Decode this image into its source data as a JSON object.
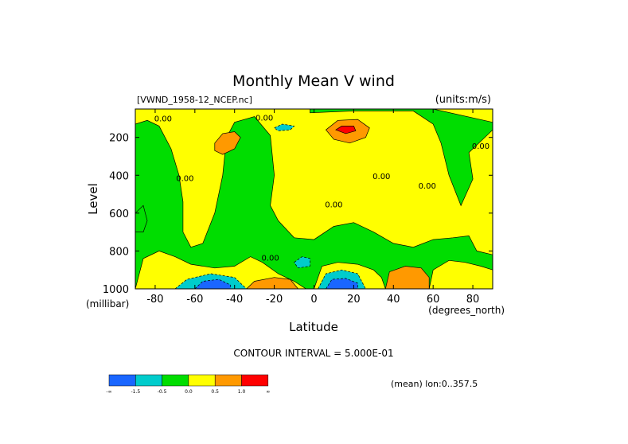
{
  "chart_data": {
    "type": "contour",
    "title": "Monthly Mean V wind",
    "dataset_label": "[VWND_1958-12_NCEP.nc]",
    "units_label": "(units:m/s)",
    "xlabel": "Latitude",
    "x_units": "(degrees_north)",
    "ylabel": "Level",
    "y_units": "(millibar)",
    "xlim": [
      -90,
      90
    ],
    "ylim": [
      1000,
      50
    ],
    "x_ticks": [
      -80,
      -60,
      -40,
      -20,
      0,
      20,
      40,
      60,
      80
    ],
    "y_ticks": [
      200,
      400,
      600,
      800,
      1000
    ],
    "contour_interval_text": "CONTOUR INTERVAL = 5.000E-01",
    "mean_text": "(mean) lon:0..357.5",
    "contour_labels": [
      {
        "text": "0.00",
        "lat": -76,
        "lev": 115
      },
      {
        "text": "0.00",
        "lat": -25,
        "lev": 110
      },
      {
        "text": "0.00",
        "lat": -65,
        "lev": 430
      },
      {
        "text": "0.00",
        "lat": 10,
        "lev": 570
      },
      {
        "text": "0.00",
        "lat": 34,
        "lev": 420
      },
      {
        "text": "0.00",
        "lat": 57,
        "lev": 470
      },
      {
        "text": "0.00",
        "lat": 84,
        "lev": 260
      },
      {
        "text": "0.00",
        "lat": -22,
        "lev": 850
      }
    ],
    "colorbar": {
      "colors": [
        "#1a66ff",
        "#00cccc",
        "#00dd00",
        "#ffff00",
        "#ff9900",
        "#ff0000"
      ],
      "labels": [
        "-∞",
        "-1.5",
        "-0.5",
        "0.0",
        "0.5",
        "1.0",
        "∞"
      ]
    },
    "palette": {
      "strong_neg": "#0000dd",
      "neg": "#1a66ff",
      "weak_neg": "#00cccc",
      "near_zero": "#00dd00",
      "weak_pos": "#ffff00",
      "pos": "#ff9900",
      "strong_pos": "#ff0000"
    },
    "regions": [
      {
        "level": "near_zero",
        "points": [
          [
            -90,
            130
          ],
          [
            -84,
            110
          ],
          [
            -78,
            140
          ],
          [
            -72,
            260
          ],
          [
            -68,
            400
          ],
          [
            -66,
            540
          ],
          [
            -66,
            700
          ],
          [
            -62,
            780
          ],
          [
            -56,
            760
          ],
          [
            -50,
            600
          ],
          [
            -46,
            400
          ],
          [
            -44,
            200
          ],
          [
            -40,
            120
          ],
          [
            -30,
            90
          ],
          [
            -22,
            190
          ],
          [
            -20,
            400
          ],
          [
            -22,
            560
          ],
          [
            -18,
            640
          ],
          [
            -10,
            730
          ],
          [
            0,
            740
          ],
          [
            10,
            670
          ],
          [
            20,
            650
          ],
          [
            30,
            700
          ],
          [
            40,
            760
          ],
          [
            50,
            780
          ],
          [
            60,
            740
          ],
          [
            70,
            730
          ],
          [
            78,
            720
          ],
          [
            82,
            800
          ],
          [
            90,
            820
          ],
          [
            90,
            1000
          ],
          [
            -90,
            1000
          ]
        ]
      },
      {
        "level": "near_zero",
        "points": [
          [
            -2,
            70
          ],
          [
            20,
            60
          ],
          [
            50,
            60
          ],
          [
            60,
            130
          ],
          [
            64,
            230
          ],
          [
            68,
            400
          ],
          [
            74,
            560
          ],
          [
            80,
            420
          ],
          [
            78,
            280
          ],
          [
            90,
            160
          ],
          [
            90,
            120
          ],
          [
            60,
            50
          ],
          [
            -2,
            50
          ]
        ]
      },
      {
        "level": "near_zero",
        "points": [
          [
            -90,
            600
          ],
          [
            -86,
            560
          ],
          [
            -84,
            640
          ],
          [
            -86,
            700
          ],
          [
            -90,
            700
          ]
        ]
      },
      {
        "level": "weak_pos",
        "points": [
          [
            -90,
            1000
          ],
          [
            -86,
            840
          ],
          [
            -78,
            800
          ],
          [
            -70,
            830
          ],
          [
            -62,
            870
          ],
          [
            -50,
            890
          ],
          [
            -40,
            880
          ],
          [
            -32,
            830
          ],
          [
            -26,
            860
          ],
          [
            -18,
            920
          ],
          [
            -10,
            960
          ],
          [
            -4,
            1000
          ]
        ]
      },
      {
        "level": "weak_pos",
        "points": [
          [
            58,
            1000
          ],
          [
            60,
            900
          ],
          [
            68,
            850
          ],
          [
            76,
            860
          ],
          [
            84,
            880
          ],
          [
            90,
            900
          ],
          [
            90,
            1000
          ]
        ]
      },
      {
        "level": "weak_pos",
        "points": [
          [
            0,
            1000
          ],
          [
            4,
            880
          ],
          [
            12,
            860
          ],
          [
            22,
            870
          ],
          [
            30,
            900
          ],
          [
            34,
            940
          ],
          [
            36,
            1000
          ]
        ]
      },
      {
        "level": "pos",
        "points": [
          [
            -50,
            230
          ],
          [
            -46,
            180
          ],
          [
            -40,
            170
          ],
          [
            -37,
            200
          ],
          [
            -40,
            260
          ],
          [
            -46,
            290
          ],
          [
            -50,
            270
          ]
        ]
      },
      {
        "level": "pos",
        "points": [
          [
            6,
            160
          ],
          [
            12,
            110
          ],
          [
            22,
            105
          ],
          [
            28,
            150
          ],
          [
            26,
            200
          ],
          [
            18,
            230
          ],
          [
            10,
            210
          ]
        ]
      },
      {
        "level": "strong_pos",
        "points": [
          [
            11,
            160
          ],
          [
            14,
            140
          ],
          [
            20,
            140
          ],
          [
            21,
            165
          ],
          [
            16,
            180
          ]
        ]
      },
      {
        "level": "pos",
        "points": [
          [
            -34,
            1000
          ],
          [
            -30,
            960
          ],
          [
            -20,
            940
          ],
          [
            -12,
            950
          ],
          [
            -8,
            1000
          ]
        ]
      },
      {
        "level": "pos",
        "points": [
          [
            36,
            1000
          ],
          [
            38,
            910
          ],
          [
            46,
            880
          ],
          [
            54,
            890
          ],
          [
            58,
            940
          ],
          [
            58,
            1000
          ]
        ]
      },
      {
        "level": "weak_neg",
        "points": [
          [
            -70,
            1000
          ],
          [
            -64,
            950
          ],
          [
            -52,
            920
          ],
          [
            -40,
            940
          ],
          [
            -34,
            1000
          ]
        ]
      },
      {
        "level": "neg",
        "points": [
          [
            -60,
            1000
          ],
          [
            -56,
            960
          ],
          [
            -48,
            950
          ],
          [
            -42,
            980
          ],
          [
            -42,
            1000
          ]
        ]
      },
      {
        "level": "weak_neg",
        "points": [
          [
            2,
            1000
          ],
          [
            6,
            920
          ],
          [
            14,
            900
          ],
          [
            22,
            920
          ],
          [
            26,
            1000
          ]
        ]
      },
      {
        "level": "neg",
        "points": [
          [
            6,
            1000
          ],
          [
            9,
            950
          ],
          [
            16,
            945
          ],
          [
            22,
            970
          ],
          [
            22,
            1000
          ]
        ]
      },
      {
        "level": "weak_neg",
        "points": [
          [
            -10,
            860
          ],
          [
            -6,
            830
          ],
          [
            -2,
            840
          ],
          [
            -2,
            880
          ],
          [
            -8,
            890
          ]
        ]
      },
      {
        "level": "weak_neg",
        "points": [
          [
            -20,
            150
          ],
          [
            -16,
            130
          ],
          [
            -10,
            140
          ],
          [
            -12,
            160
          ],
          [
            -18,
            165
          ]
        ]
      }
    ]
  }
}
